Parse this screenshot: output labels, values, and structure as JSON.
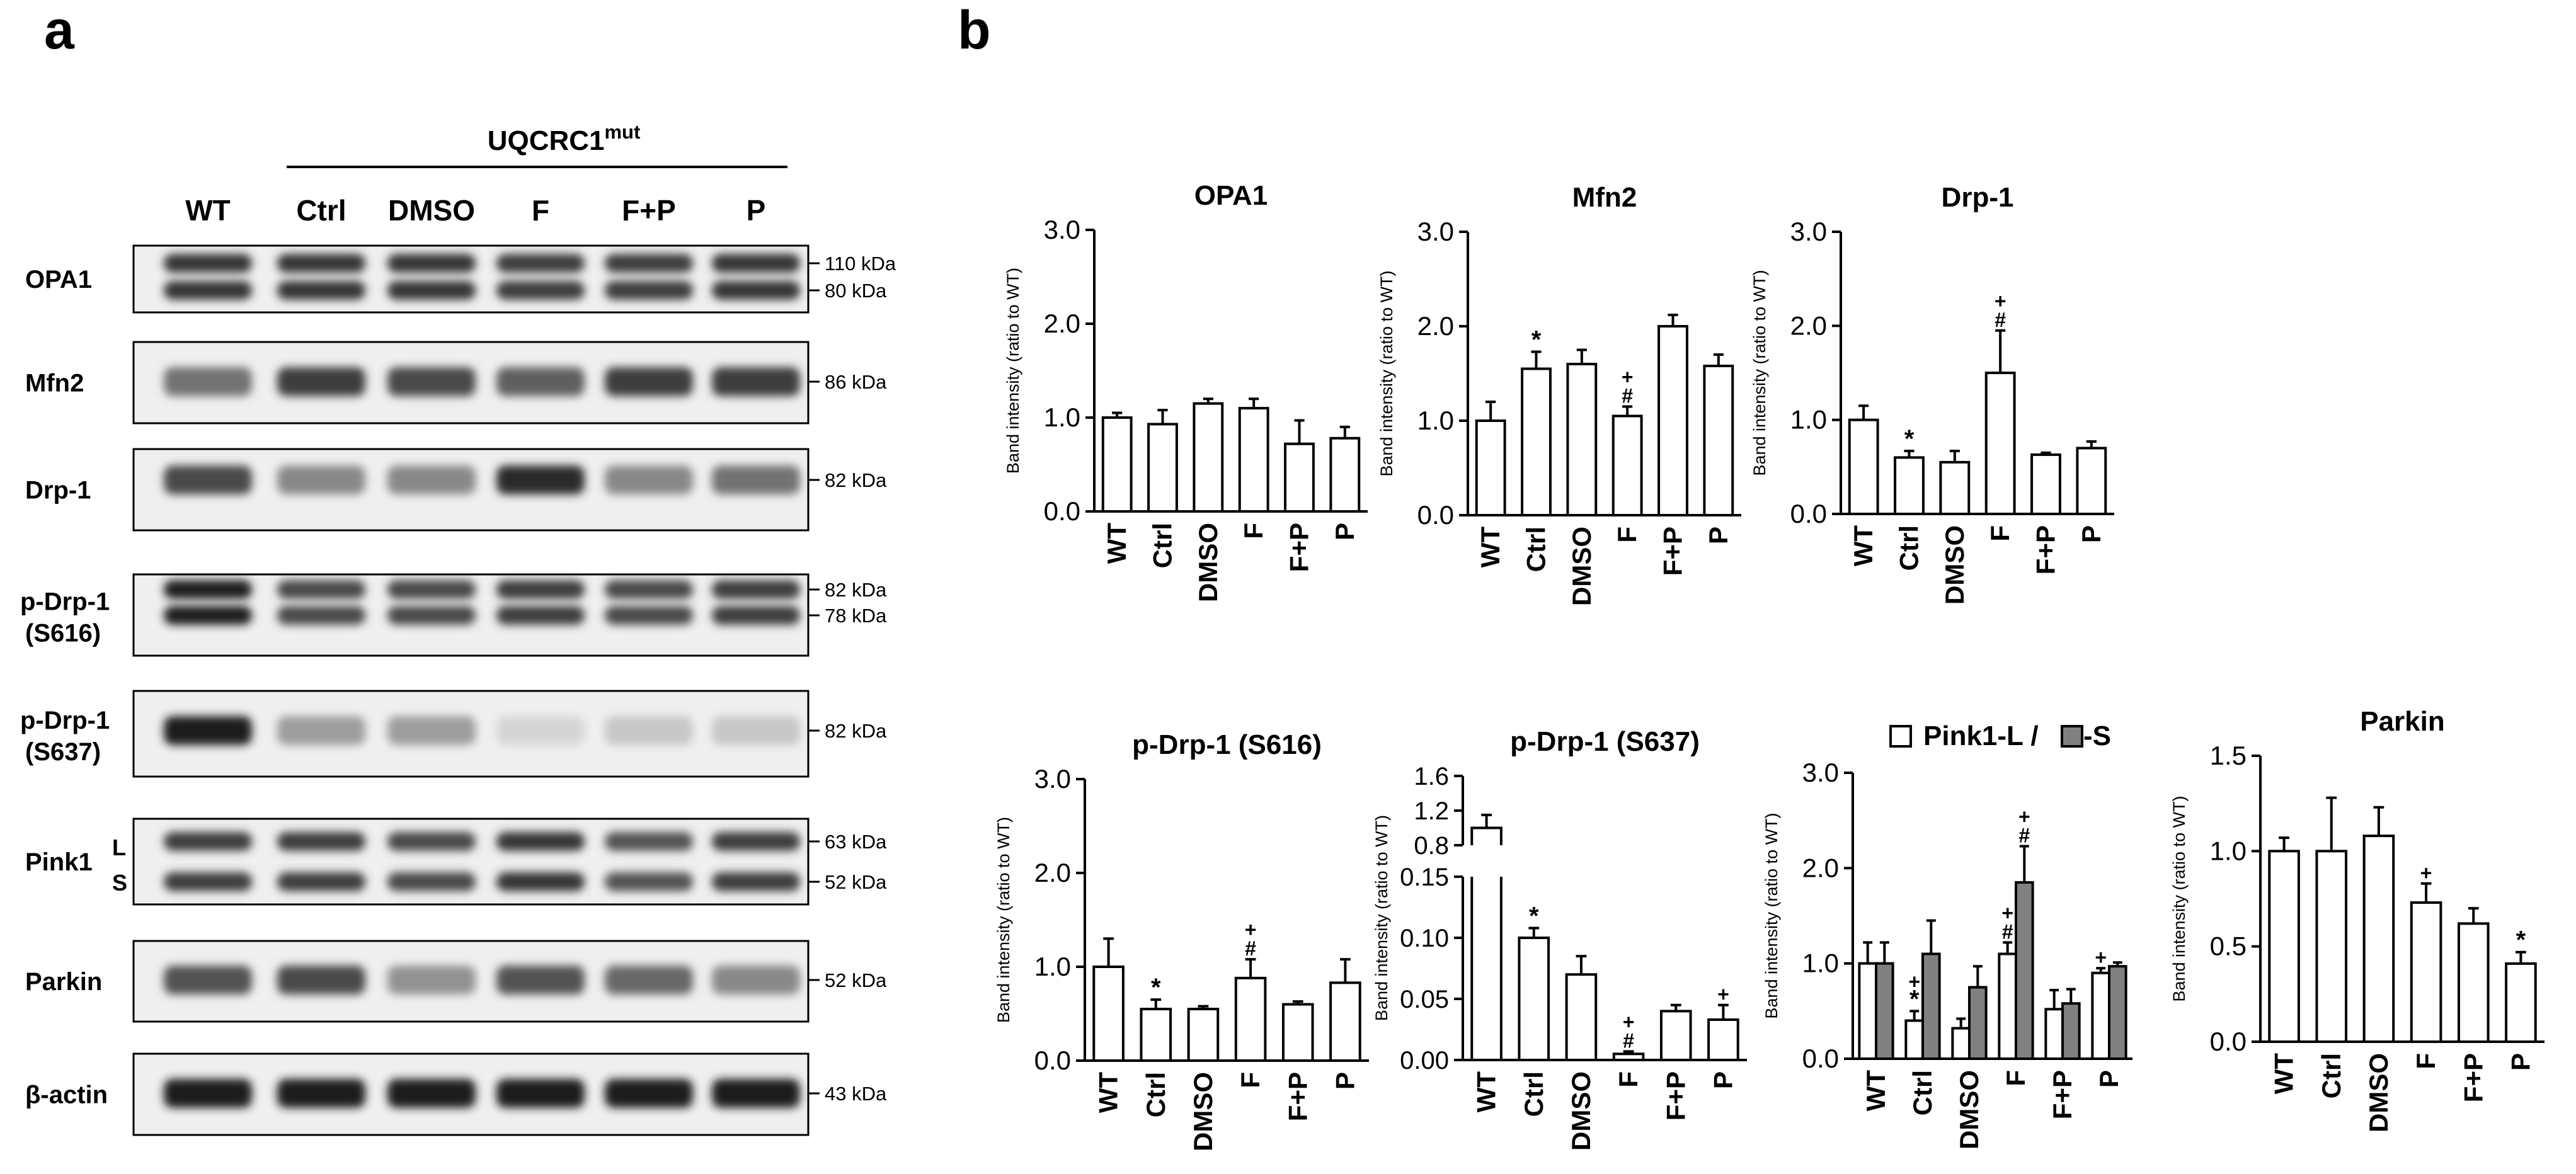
{
  "panel_labels": {
    "a": "a",
    "b": "b"
  },
  "blot": {
    "group_label": "UQCRC1",
    "group_sup": "mut",
    "lanes": [
      "WT",
      "Ctrl",
      "DMSO",
      "F",
      "F+P",
      "P"
    ],
    "rows": [
      {
        "label": [
          "OPA1"
        ],
        "kda": [
          "110 kDa",
          "80 kDa"
        ],
        "bands": [
          2,
          2,
          2,
          2,
          2,
          2
        ],
        "intensity": [
          0.85,
          0.85,
          0.85,
          0.8,
          0.8,
          0.85
        ]
      },
      {
        "label": [
          "Mfn2"
        ],
        "kda": [
          "86 kDa"
        ],
        "bands": [
          1,
          1,
          1,
          1,
          1,
          1
        ],
        "intensity": [
          0.55,
          0.8,
          0.75,
          0.65,
          0.8,
          0.8
        ]
      },
      {
        "label": [
          "Drp-1"
        ],
        "kda": [
          "82 kDa"
        ],
        "bands": [
          1,
          1,
          1,
          1,
          1,
          1
        ],
        "intensity": [
          0.75,
          0.45,
          0.45,
          0.9,
          0.45,
          0.55
        ]
      },
      {
        "label": [
          "p-Drp-1",
          "(S616)"
        ],
        "kda": [
          "82 kDa",
          "78 kDa"
        ],
        "bands": [
          2,
          2,
          2,
          2,
          2,
          2
        ],
        "intensity": [
          0.95,
          0.75,
          0.75,
          0.8,
          0.75,
          0.8
        ]
      },
      {
        "label": [
          "p-Drp-1",
          "(S637)"
        ],
        "kda": [
          "82 kDa"
        ],
        "bands": [
          1,
          1,
          1,
          1,
          1,
          1
        ],
        "intensity": [
          0.95,
          0.35,
          0.35,
          0.08,
          0.15,
          0.15
        ]
      },
      {
        "label": [
          "Pink1"
        ],
        "kda": [
          "63 kDa",
          "52 kDa"
        ],
        "bands": [
          2,
          2,
          2,
          2,
          2,
          2
        ],
        "intensity": [
          0.8,
          0.8,
          0.75,
          0.85,
          0.7,
          0.8
        ],
        "sub": [
          "L",
          "S"
        ]
      },
      {
        "label": [
          "Parkin"
        ],
        "kda": [
          "52 kDa"
        ],
        "bands": [
          1,
          1,
          1,
          1,
          1,
          1
        ],
        "intensity": [
          0.7,
          0.75,
          0.4,
          0.7,
          0.6,
          0.45
        ]
      },
      {
        "label": [
          "β-actin"
        ],
        "kda": [
          "43 kDa"
        ],
        "bands": [
          1,
          1,
          1,
          1,
          1,
          1
        ],
        "intensity": [
          0.95,
          0.95,
          0.95,
          0.95,
          0.95,
          0.95
        ]
      }
    ]
  },
  "chart_data": [
    {
      "type": "bar",
      "title": "OPA1",
      "ylabel": "Band intensity (ratio to WT)",
      "categories": [
        "WT",
        "Ctrl",
        "DMSO",
        "F",
        "F+P",
        "P"
      ],
      "values": [
        1.0,
        0.93,
        1.15,
        1.1,
        0.72,
        0.78
      ],
      "errors": [
        0.05,
        0.15,
        0.05,
        0.1,
        0.25,
        0.12
      ],
      "ylim": [
        0,
        3.0
      ],
      "yticks": [
        "0.0",
        "1.0",
        "2.0",
        "3.0"
      ],
      "annotations": [
        "",
        "",
        "",
        "",
        "",
        ""
      ]
    },
    {
      "type": "bar",
      "title": "Mfn2",
      "ylabel": "Band intensity (ratio to WT)",
      "categories": [
        "WT",
        "Ctrl",
        "DMSO",
        "F",
        "F+P",
        "P"
      ],
      "values": [
        1.0,
        1.55,
        1.6,
        1.05,
        2.0,
        1.58
      ],
      "errors": [
        0.2,
        0.18,
        0.15,
        0.1,
        0.12,
        0.12
      ],
      "ylim": [
        0,
        3.0
      ],
      "yticks": [
        "0.0",
        "1.0",
        "2.0",
        "3.0"
      ],
      "annotations": [
        "",
        "*",
        "",
        "+\n#",
        "",
        ""
      ]
    },
    {
      "type": "bar",
      "title": "Drp-1",
      "ylabel": "Band intensity (ratio to WT)",
      "categories": [
        "WT",
        "Ctrl",
        "DMSO",
        "F",
        "F+P",
        "P"
      ],
      "values": [
        1.0,
        0.6,
        0.55,
        1.5,
        0.63,
        0.7
      ],
      "errors": [
        0.15,
        0.07,
        0.12,
        0.45,
        0.02,
        0.07
      ],
      "ylim": [
        0,
        3.0
      ],
      "yticks": [
        "0.0",
        "1.0",
        "2.0",
        "3.0"
      ],
      "annotations": [
        "",
        "*",
        "",
        "+\n#",
        "",
        ""
      ]
    },
    {
      "type": "bar",
      "title": "p-Drp-1 (S616)",
      "ylabel": "Band intensity (ratio to WT)",
      "categories": [
        "WT",
        "Ctrl",
        "DMSO",
        "F",
        "F+P",
        "P"
      ],
      "values": [
        1.0,
        0.55,
        0.55,
        0.88,
        0.6,
        0.83
      ],
      "errors": [
        0.3,
        0.1,
        0.03,
        0.2,
        0.03,
        0.25
      ],
      "ylim": [
        0,
        3.0
      ],
      "yticks": [
        "0.0",
        "1.0",
        "2.0",
        "3.0"
      ],
      "annotations": [
        "",
        "*",
        "",
        "+\n#",
        "",
        ""
      ]
    },
    {
      "type": "bar",
      "title": "p-Drp-1 (S637)",
      "ylabel": "Band intensity (ratio to WT)",
      "categories": [
        "WT",
        "Ctrl",
        "DMSO",
        "F",
        "F+P",
        "P"
      ],
      "values": [
        1.0,
        0.1,
        0.07,
        0.005,
        0.04,
        0.033
      ],
      "errors": [
        0.15,
        0.008,
        0.015,
        0.002,
        0.005,
        0.012
      ],
      "broken_axis": true,
      "lower_ylim": [
        0,
        0.15
      ],
      "lower_yticks": [
        "0.00",
        "0.05",
        "0.10",
        "0.15"
      ],
      "upper_ylim": [
        0.8,
        1.6
      ],
      "upper_yticks": [
        "0.8",
        "1.2",
        "1.6"
      ],
      "annotations": [
        "",
        "*",
        "",
        "+\n#",
        "",
        "+"
      ]
    },
    {
      "type": "bar",
      "title": "Pink1-L / -S",
      "legend": [
        {
          "name": "Pink1-L /",
          "color": "#ffffff"
        },
        {
          "name": "-S",
          "color": "#808080"
        }
      ],
      "ylabel": "Band intensity (ratio to WT)",
      "categories": [
        "WT",
        "Ctrl",
        "DMSO",
        "F",
        "F+P",
        "P"
      ],
      "series": [
        {
          "name": "Pink1-L",
          "values": [
            1.0,
            0.4,
            0.32,
            1.1,
            0.52,
            0.9
          ],
          "errors": [
            0.22,
            0.1,
            0.1,
            0.12,
            0.2,
            0.05
          ]
        },
        {
          "name": "Pink1-S",
          "values": [
            1.0,
            1.1,
            0.75,
            1.85,
            0.58,
            0.97
          ],
          "errors": [
            0.22,
            0.35,
            0.22,
            0.38,
            0.15,
            0.04
          ]
        }
      ],
      "ylim": [
        0,
        3.0
      ],
      "yticks": [
        "0.0",
        "1.0",
        "2.0",
        "3.0"
      ],
      "annotations": [
        [
          "",
          ""
        ],
        [
          "+\n*",
          ""
        ],
        [
          "",
          ""
        ],
        [
          "+\n#",
          "+\n#"
        ],
        [
          "",
          ""
        ],
        [
          "+",
          ""
        ]
      ]
    },
    {
      "type": "bar",
      "title": "Parkin",
      "ylabel": "Band intensity (ratio to WT)",
      "categories": [
        "WT",
        "Ctrl",
        "DMSO",
        "F",
        "F+P",
        "P"
      ],
      "values": [
        1.0,
        1.0,
        1.08,
        0.73,
        0.62,
        0.41
      ],
      "errors": [
        0.07,
        0.28,
        0.15,
        0.1,
        0.08,
        0.06
      ],
      "ylim": [
        0,
        1.5
      ],
      "yticks": [
        "0.0",
        "0.5",
        "1.0",
        "1.5"
      ],
      "annotations": [
        "",
        "",
        "",
        "+",
        "",
        "*"
      ]
    }
  ]
}
